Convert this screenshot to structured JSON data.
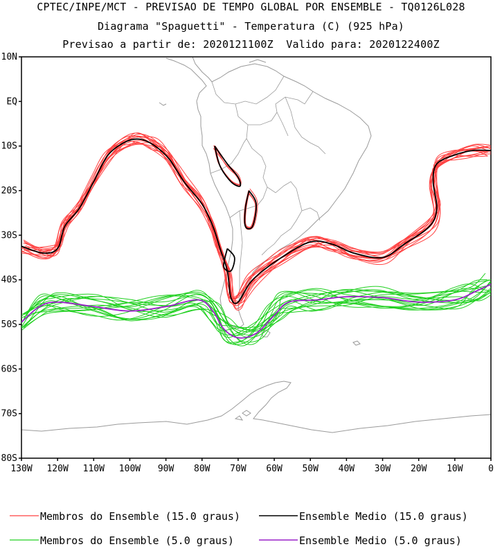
{
  "header": {
    "line1": "CPTEC/INPE/MCT - PREVISAO DE TEMPO GLOBAL POR ENSEMBLE - TQ0126L028",
    "line2": "Diagrama \"Spaguetti\" - Temperatura (C) (925 hPa)",
    "line3": "Previsao a partir de: 2020121100Z  Valido para: 2020122400Z"
  },
  "axes": {
    "lat_labels": [
      "10N",
      "EQ",
      "10S",
      "20S",
      "30S",
      "40S",
      "50S",
      "60S",
      "70S",
      "80S"
    ],
    "lon_labels": [
      "130W",
      "120W",
      "110W",
      "100W",
      "90W",
      "80W",
      "70W",
      "60W",
      "50W",
      "40W",
      "30W",
      "20W",
      "10W",
      "0"
    ]
  },
  "legend": {
    "items": [
      {
        "label": "Membros do Ensemble (15.0 graus)",
        "color": "#ff4040"
      },
      {
        "label": "Ensemble Medio (15.0 graus)",
        "color": "#000000"
      },
      {
        "label": "Membros do Ensemble (5.0 graus)",
        "color": "#20d020"
      },
      {
        "label": "Ensemble Medio (5.0 graus)",
        "color": "#9a20c8"
      }
    ]
  },
  "colors": {
    "coast": "#9a9a9a",
    "member15": "#ff4040",
    "mean15": "#000000",
    "member5": "#20d020",
    "mean5": "#9a20c8"
  },
  "chart_data": {
    "type": "map-contour",
    "field": "Temperatura (C) 925 hPa",
    "lon_range": [
      -130,
      0
    ],
    "lat_range": [
      -80,
      10
    ],
    "isotherm_15_mean": [
      [
        -130,
        -32.5
      ],
      [
        -124,
        -34
      ],
      [
        -120,
        -33
      ],
      [
        -118,
        -28
      ],
      [
        -114,
        -24
      ],
      [
        -110,
        -18
      ],
      [
        -106,
        -12
      ],
      [
        -101,
        -9
      ],
      [
        -97,
        -8.5
      ],
      [
        -93,
        -10
      ],
      [
        -89,
        -13
      ],
      [
        -85,
        -18
      ],
      [
        -80,
        -23
      ],
      [
        -77,
        -28
      ],
      [
        -75,
        -33
      ],
      [
        -73,
        -38
      ],
      [
        -72,
        -44
      ],
      [
        -70,
        -45
      ],
      [
        -66,
        -40
      ],
      [
        -58,
        -35
      ],
      [
        -50,
        -31.5
      ],
      [
        -44,
        -32
      ],
      [
        -38,
        -34
      ],
      [
        -30,
        -35
      ],
      [
        -24,
        -32
      ],
      [
        -17,
        -28
      ],
      [
        -15,
        -24
      ],
      [
        -16,
        -18
      ],
      [
        -15,
        -14
      ],
      [
        -10,
        -12
      ],
      [
        -5,
        -11
      ],
      [
        0,
        -11
      ]
    ],
    "isotherm_5_mean": [
      [
        -130,
        -49.5
      ],
      [
        -125,
        -46
      ],
      [
        -120,
        -45
      ],
      [
        -110,
        -46
      ],
      [
        -100,
        -47
      ],
      [
        -90,
        -46
      ],
      [
        -81,
        -44.5
      ],
      [
        -77,
        -47
      ],
      [
        -74,
        -51
      ],
      [
        -70,
        -53
      ],
      [
        -65,
        -52
      ],
      [
        -60,
        -48
      ],
      [
        -56,
        -45
      ],
      [
        -48,
        -44.5
      ],
      [
        -40,
        -43.8
      ],
      [
        -30,
        -44
      ],
      [
        -20,
        -45
      ],
      [
        -10,
        -44.5
      ],
      [
        -4,
        -42.5
      ],
      [
        0,
        -41
      ]
    ]
  }
}
